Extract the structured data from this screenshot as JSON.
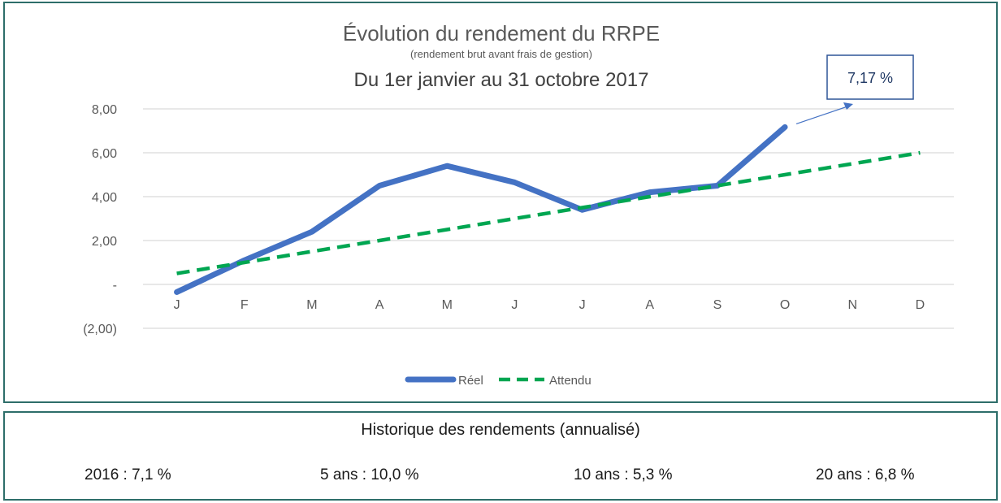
{
  "chart_data": {
    "type": "line",
    "title": "Évolution du rendement du RRPE",
    "subtitle": "(rendement brut avant frais de gestion)",
    "period": "Du 1er janvier au 31 octobre 2017",
    "categories": [
      "J",
      "F",
      "M",
      "A",
      "M",
      "J",
      "J",
      "A",
      "S",
      "O",
      "N",
      "D"
    ],
    "ylim": [
      -2,
      8
    ],
    "yticks": [
      {
        "value": 8,
        "label": "8,00"
      },
      {
        "value": 6,
        "label": "6,00"
      },
      {
        "value": 4,
        "label": "4,00"
      },
      {
        "value": 2,
        "label": "2,00"
      },
      {
        "value": 0,
        "label": "-"
      },
      {
        "value": -2,
        "label": "(2,00)"
      }
    ],
    "series": [
      {
        "name": "Réel",
        "color": "#4472c4",
        "style": "solid",
        "values": [
          -0.35,
          1.1,
          2.4,
          4.5,
          5.4,
          4.65,
          3.4,
          4.2,
          4.5,
          7.17,
          null,
          null
        ]
      },
      {
        "name": "Attendu",
        "color": "#00a651",
        "style": "dashed",
        "values": [
          0.5,
          1.0,
          1.5,
          2.0,
          2.5,
          3.0,
          3.5,
          4.0,
          4.5,
          5.0,
          5.5,
          6.0
        ]
      }
    ],
    "grid": true,
    "legend": "bottom",
    "annotation": {
      "text": "7,17 %",
      "target_category": "O"
    }
  },
  "history": {
    "title": "Historique des rendements (annualisé)",
    "items": [
      "2016 : 7,1 %",
      "5 ans : 10,0 %",
      "10 ans : 5,3 %",
      "20 ans : 6,8 %"
    ]
  }
}
